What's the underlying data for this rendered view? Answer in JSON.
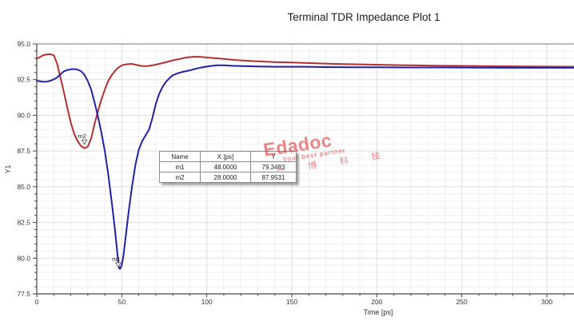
{
  "chart_data": {
    "type": "line",
    "title": "Terminal TDR Impedance Plot 1",
    "xlabel": "Time [ps]",
    "ylabel": "Y1",
    "xlim": [
      0,
      316
    ],
    "ylim": [
      77.5,
      95.0
    ],
    "x_ticks": [
      0,
      50,
      100,
      150,
      200,
      250,
      300
    ],
    "y_ticks": [
      95.0,
      92.5,
      90.0,
      87.5,
      85.0,
      82.5,
      80.0,
      77.5
    ],
    "x_minor_step": 10,
    "y_minor_step": 0.5,
    "grid": true,
    "legend": "none",
    "series": [
      {
        "name": "red-trace",
        "color": "#b23030",
        "points": [
          [
            0,
            93.95
          ],
          [
            2,
            94.1
          ],
          [
            4,
            94.22
          ],
          [
            6,
            94.27
          ],
          [
            8,
            94.28
          ],
          [
            10,
            94.2
          ],
          [
            12,
            93.6
          ],
          [
            14,
            92.6
          ],
          [
            16,
            91.6
          ],
          [
            18,
            90.5
          ],
          [
            20,
            89.5
          ],
          [
            22,
            88.7
          ],
          [
            24,
            88.2
          ],
          [
            26,
            87.85
          ],
          [
            28,
            87.7
          ],
          [
            30,
            87.8
          ],
          [
            32,
            88.4
          ],
          [
            34,
            89.4
          ],
          [
            36,
            90.3
          ],
          [
            38,
            91.1
          ],
          [
            40,
            91.8
          ],
          [
            42,
            92.4
          ],
          [
            44,
            92.8
          ],
          [
            46,
            93.1
          ],
          [
            48,
            93.35
          ],
          [
            50,
            93.5
          ],
          [
            53,
            93.58
          ],
          [
            56,
            93.6
          ],
          [
            59,
            93.52
          ],
          [
            62,
            93.45
          ],
          [
            65,
            93.45
          ],
          [
            68,
            93.5
          ],
          [
            72,
            93.6
          ],
          [
            76,
            93.72
          ],
          [
            80,
            93.85
          ],
          [
            84,
            93.95
          ],
          [
            88,
            94.05
          ],
          [
            92,
            94.1
          ],
          [
            96,
            94.1
          ],
          [
            100,
            94.05
          ],
          [
            105,
            94.0
          ],
          [
            110,
            93.95
          ],
          [
            116,
            93.88
          ],
          [
            122,
            93.83
          ],
          [
            130,
            93.78
          ],
          [
            140,
            93.73
          ],
          [
            150,
            93.7
          ],
          [
            162,
            93.65
          ],
          [
            175,
            93.6
          ],
          [
            190,
            93.57
          ],
          [
            205,
            93.53
          ],
          [
            220,
            93.5
          ],
          [
            235,
            93.48
          ],
          [
            250,
            93.46
          ],
          [
            265,
            93.44
          ],
          [
            280,
            93.43
          ],
          [
            295,
            93.41
          ],
          [
            316,
            93.4
          ]
        ]
      },
      {
        "name": "blue-trace",
        "color": "#2121a8",
        "points": [
          [
            0,
            92.42
          ],
          [
            2,
            92.38
          ],
          [
            4,
            92.35
          ],
          [
            6,
            92.36
          ],
          [
            8,
            92.42
          ],
          [
            10,
            92.52
          ],
          [
            12,
            92.65
          ],
          [
            14,
            92.88
          ],
          [
            16,
            93.08
          ],
          [
            18,
            93.18
          ],
          [
            20,
            93.22
          ],
          [
            22,
            93.24
          ],
          [
            24,
            93.2
          ],
          [
            26,
            93.1
          ],
          [
            28,
            92.85
          ],
          [
            30,
            92.4
          ],
          [
            32,
            91.8
          ],
          [
            34,
            90.9
          ],
          [
            36,
            89.9
          ],
          [
            38,
            88.8
          ],
          [
            40,
            87.5
          ],
          [
            42,
            85.9
          ],
          [
            44,
            84.0
          ],
          [
            46,
            82.0
          ],
          [
            47,
            80.8
          ],
          [
            48,
            79.6
          ],
          [
            48.5,
            79.3
          ],
          [
            49,
            79.25
          ],
          [
            50,
            79.5
          ],
          [
            51,
            80.2
          ],
          [
            52,
            81.2
          ],
          [
            54,
            83.2
          ],
          [
            56,
            85.0
          ],
          [
            58,
            86.5
          ],
          [
            60,
            87.6
          ],
          [
            62,
            88.2
          ],
          [
            64,
            88.6
          ],
          [
            66,
            89.0
          ],
          [
            68,
            89.8
          ],
          [
            70,
            90.8
          ],
          [
            72,
            91.5
          ],
          [
            74,
            92.0
          ],
          [
            76,
            92.35
          ],
          [
            78,
            92.6
          ],
          [
            80,
            92.8
          ],
          [
            83,
            92.95
          ],
          [
            86,
            93.05
          ],
          [
            90,
            93.15
          ],
          [
            94,
            93.28
          ],
          [
            98,
            93.38
          ],
          [
            102,
            93.45
          ],
          [
            106,
            93.5
          ],
          [
            110,
            93.5
          ],
          [
            115,
            93.47
          ],
          [
            120,
            93.45
          ],
          [
            130,
            93.42
          ],
          [
            140,
            93.4
          ],
          [
            155,
            93.4
          ],
          [
            170,
            93.38
          ],
          [
            185,
            93.37
          ],
          [
            200,
            93.36
          ],
          [
            220,
            93.35
          ],
          [
            240,
            93.35
          ],
          [
            260,
            93.34
          ],
          [
            280,
            93.33
          ],
          [
            300,
            93.33
          ],
          [
            316,
            93.33
          ]
        ]
      }
    ],
    "markers": [
      {
        "label": "m1",
        "x": 48,
        "y": 79.3483
      },
      {
        "label": "m2",
        "x": 28,
        "y": 87.9531
      }
    ]
  },
  "marker_table": {
    "headers": [
      "Name",
      "X [ps]",
      "Y"
    ],
    "rows": [
      [
        "m1",
        "48.0000",
        "79.3483"
      ],
      [
        "m2",
        "28.0000",
        "87.9531"
      ]
    ]
  },
  "watermark": {
    "brand": "Edadoc",
    "tagline": "Your best partner",
    "chinese": "一 博 科 技",
    "color": "#e23b3b"
  },
  "colors": {
    "axis": "#444444",
    "frame_top": "#777777",
    "grid_minor": "#efefef",
    "grid_major": "#dedede",
    "tick_text": "#333333"
  }
}
